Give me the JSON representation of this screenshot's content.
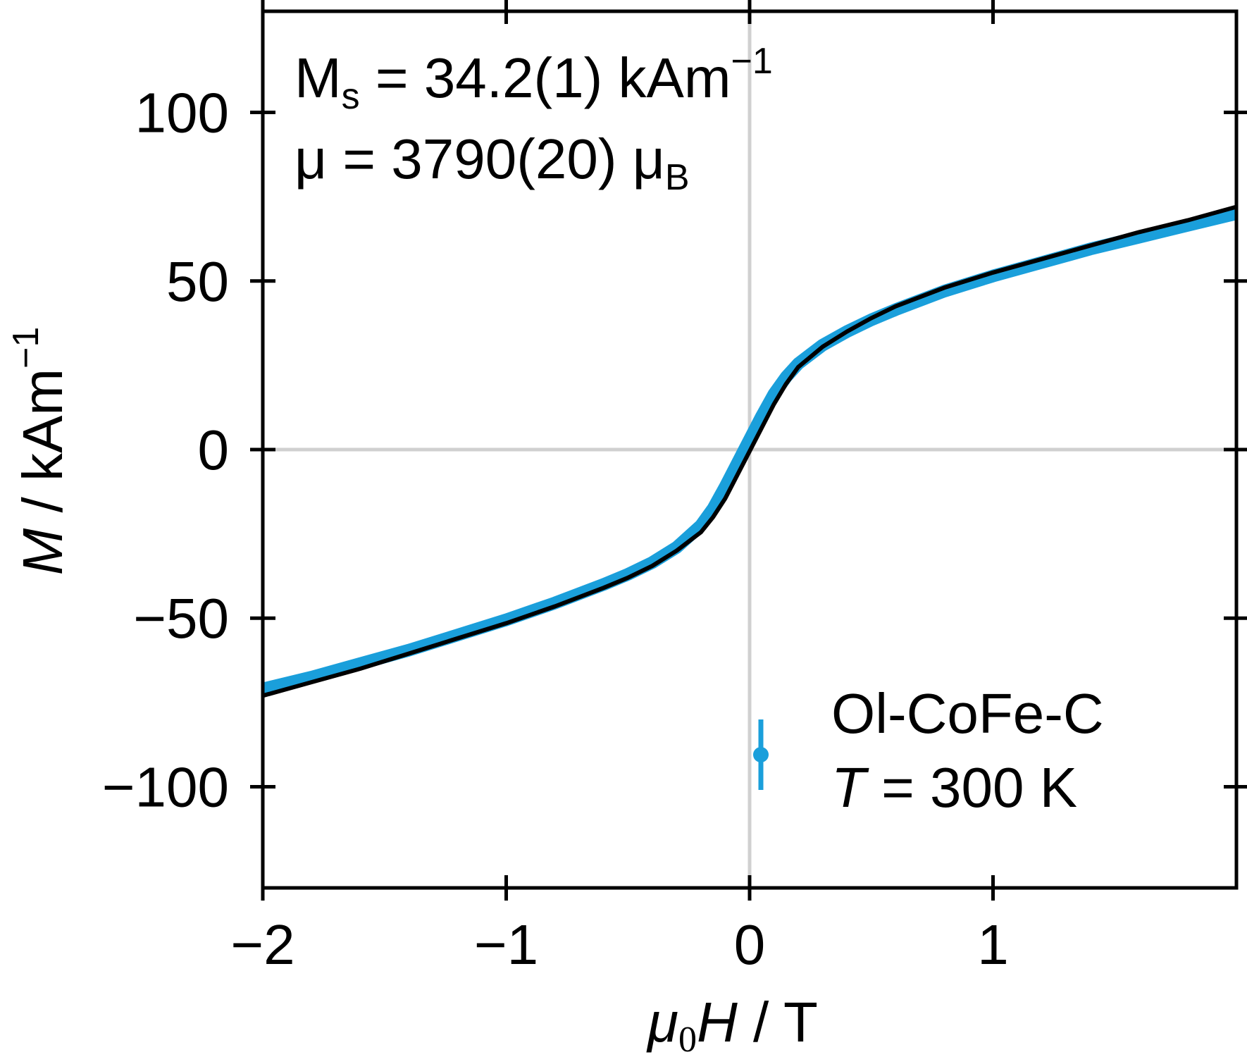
{
  "chart_data": {
    "type": "line",
    "xlabel": {
      "symbol": "μ",
      "sub": "0",
      "var": "H",
      "unit": " / T"
    },
    "ylabel": {
      "var": "M",
      "unit": " / kAm",
      "sup": "−1"
    },
    "xlim": [
      -2,
      2
    ],
    "ylim": [
      -130,
      130
    ],
    "x_ticks": [
      {
        "value": -2,
        "label": "−2"
      },
      {
        "value": -1,
        "label": "−1"
      },
      {
        "value": 0,
        "label": "0"
      },
      {
        "value": 1,
        "label": "1"
      }
    ],
    "y_ticks": [
      {
        "value": 100,
        "label": "100"
      },
      {
        "value": 50,
        "label": "50"
      },
      {
        "value": 0,
        "label": "0"
      },
      {
        "value": -50,
        "label": "−50"
      },
      {
        "value": -100,
        "label": "−100"
      }
    ],
    "grid": "zero-lines",
    "annotations": {
      "ms": {
        "prefix": "M",
        "sub": "s",
        "value": " = 34.2(1) kAm",
        "sup": "−1"
      },
      "mu": {
        "prefix": "μ = 3790(20) μ",
        "sub": "B"
      }
    },
    "legend": {
      "placement": "bottom-right",
      "sample": "Ol-CoFe-C",
      "temperature": {
        "var": "T",
        "value": " = 300 K"
      }
    },
    "series": [
      {
        "role": "measured data",
        "color": "#1a9fdb",
        "x": [
          -2.0,
          -1.8,
          -1.6,
          -1.4,
          -1.2,
          -1.0,
          -0.8,
          -0.6,
          -0.5,
          -0.4,
          -0.3,
          -0.2,
          -0.15,
          -0.1,
          -0.05,
          0.0,
          0.05,
          0.1,
          0.15,
          0.2,
          0.3,
          0.4,
          0.5,
          0.6,
          0.8,
          1.0,
          1.2,
          1.4,
          1.6,
          1.8,
          2.0
        ],
        "y": [
          -71,
          -67.5,
          -63.5,
          -59.5,
          -55,
          -50.5,
          -45.5,
          -40,
          -37,
          -33.5,
          -29,
          -22.5,
          -17.5,
          -11,
          -4,
          3,
          10,
          16.5,
          21.5,
          25.5,
          31,
          35,
          38.5,
          41.5,
          47,
          51.5,
          55.5,
          59.5,
          63,
          66.5,
          70
        ]
      },
      {
        "role": "fit",
        "color": "#000000",
        "x": [
          -2.0,
          -1.8,
          -1.6,
          -1.4,
          -1.2,
          -1.0,
          -0.8,
          -0.6,
          -0.5,
          -0.4,
          -0.3,
          -0.2,
          -0.15,
          -0.1,
          -0.05,
          0.0,
          0.05,
          0.1,
          0.15,
          0.2,
          0.3,
          0.4,
          0.5,
          0.6,
          0.8,
          1.0,
          1.2,
          1.4,
          1.6,
          1.8,
          2.0
        ],
        "y": [
          -73,
          -69,
          -65,
          -60.5,
          -56,
          -51.5,
          -46.5,
          -41,
          -38,
          -34.5,
          -30,
          -24.5,
          -20,
          -14.5,
          -7.5,
          -0.5,
          6.5,
          13.5,
          19.5,
          24.5,
          30.5,
          35,
          39,
          42.5,
          48,
          52.5,
          56.5,
          60.5,
          64.5,
          68,
          72
        ]
      }
    ]
  }
}
